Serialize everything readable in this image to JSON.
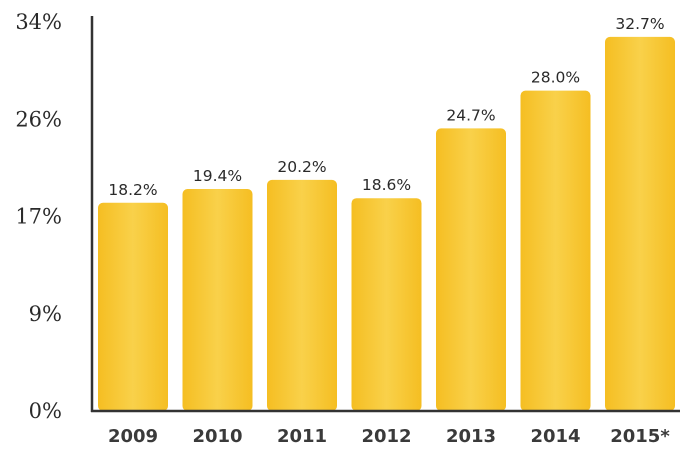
{
  "chart_data": {
    "type": "bar",
    "title": "",
    "xlabel": "",
    "ylabel": "",
    "categories": [
      "2009",
      "2010",
      "2011",
      "2012",
      "2013",
      "2014",
      "2015*"
    ],
    "values": [
      18.2,
      19.4,
      20.2,
      18.6,
      24.7,
      28.0,
      32.7
    ],
    "data_labels": [
      "18.2%",
      "19.4%",
      "20.2%",
      "18.6%",
      "24.7%",
      "28.0%",
      "32.7%"
    ],
    "y_ticks": [
      0,
      8.5,
      17,
      25.5,
      34
    ],
    "y_tick_labels": [
      "0%",
      "9%",
      "17%",
      "26%",
      "34%"
    ],
    "ylim": [
      0,
      34
    ],
    "grid": false,
    "legend": "none",
    "bar_color": "#F5BE22",
    "bar_highlight": "#F9D14A"
  }
}
